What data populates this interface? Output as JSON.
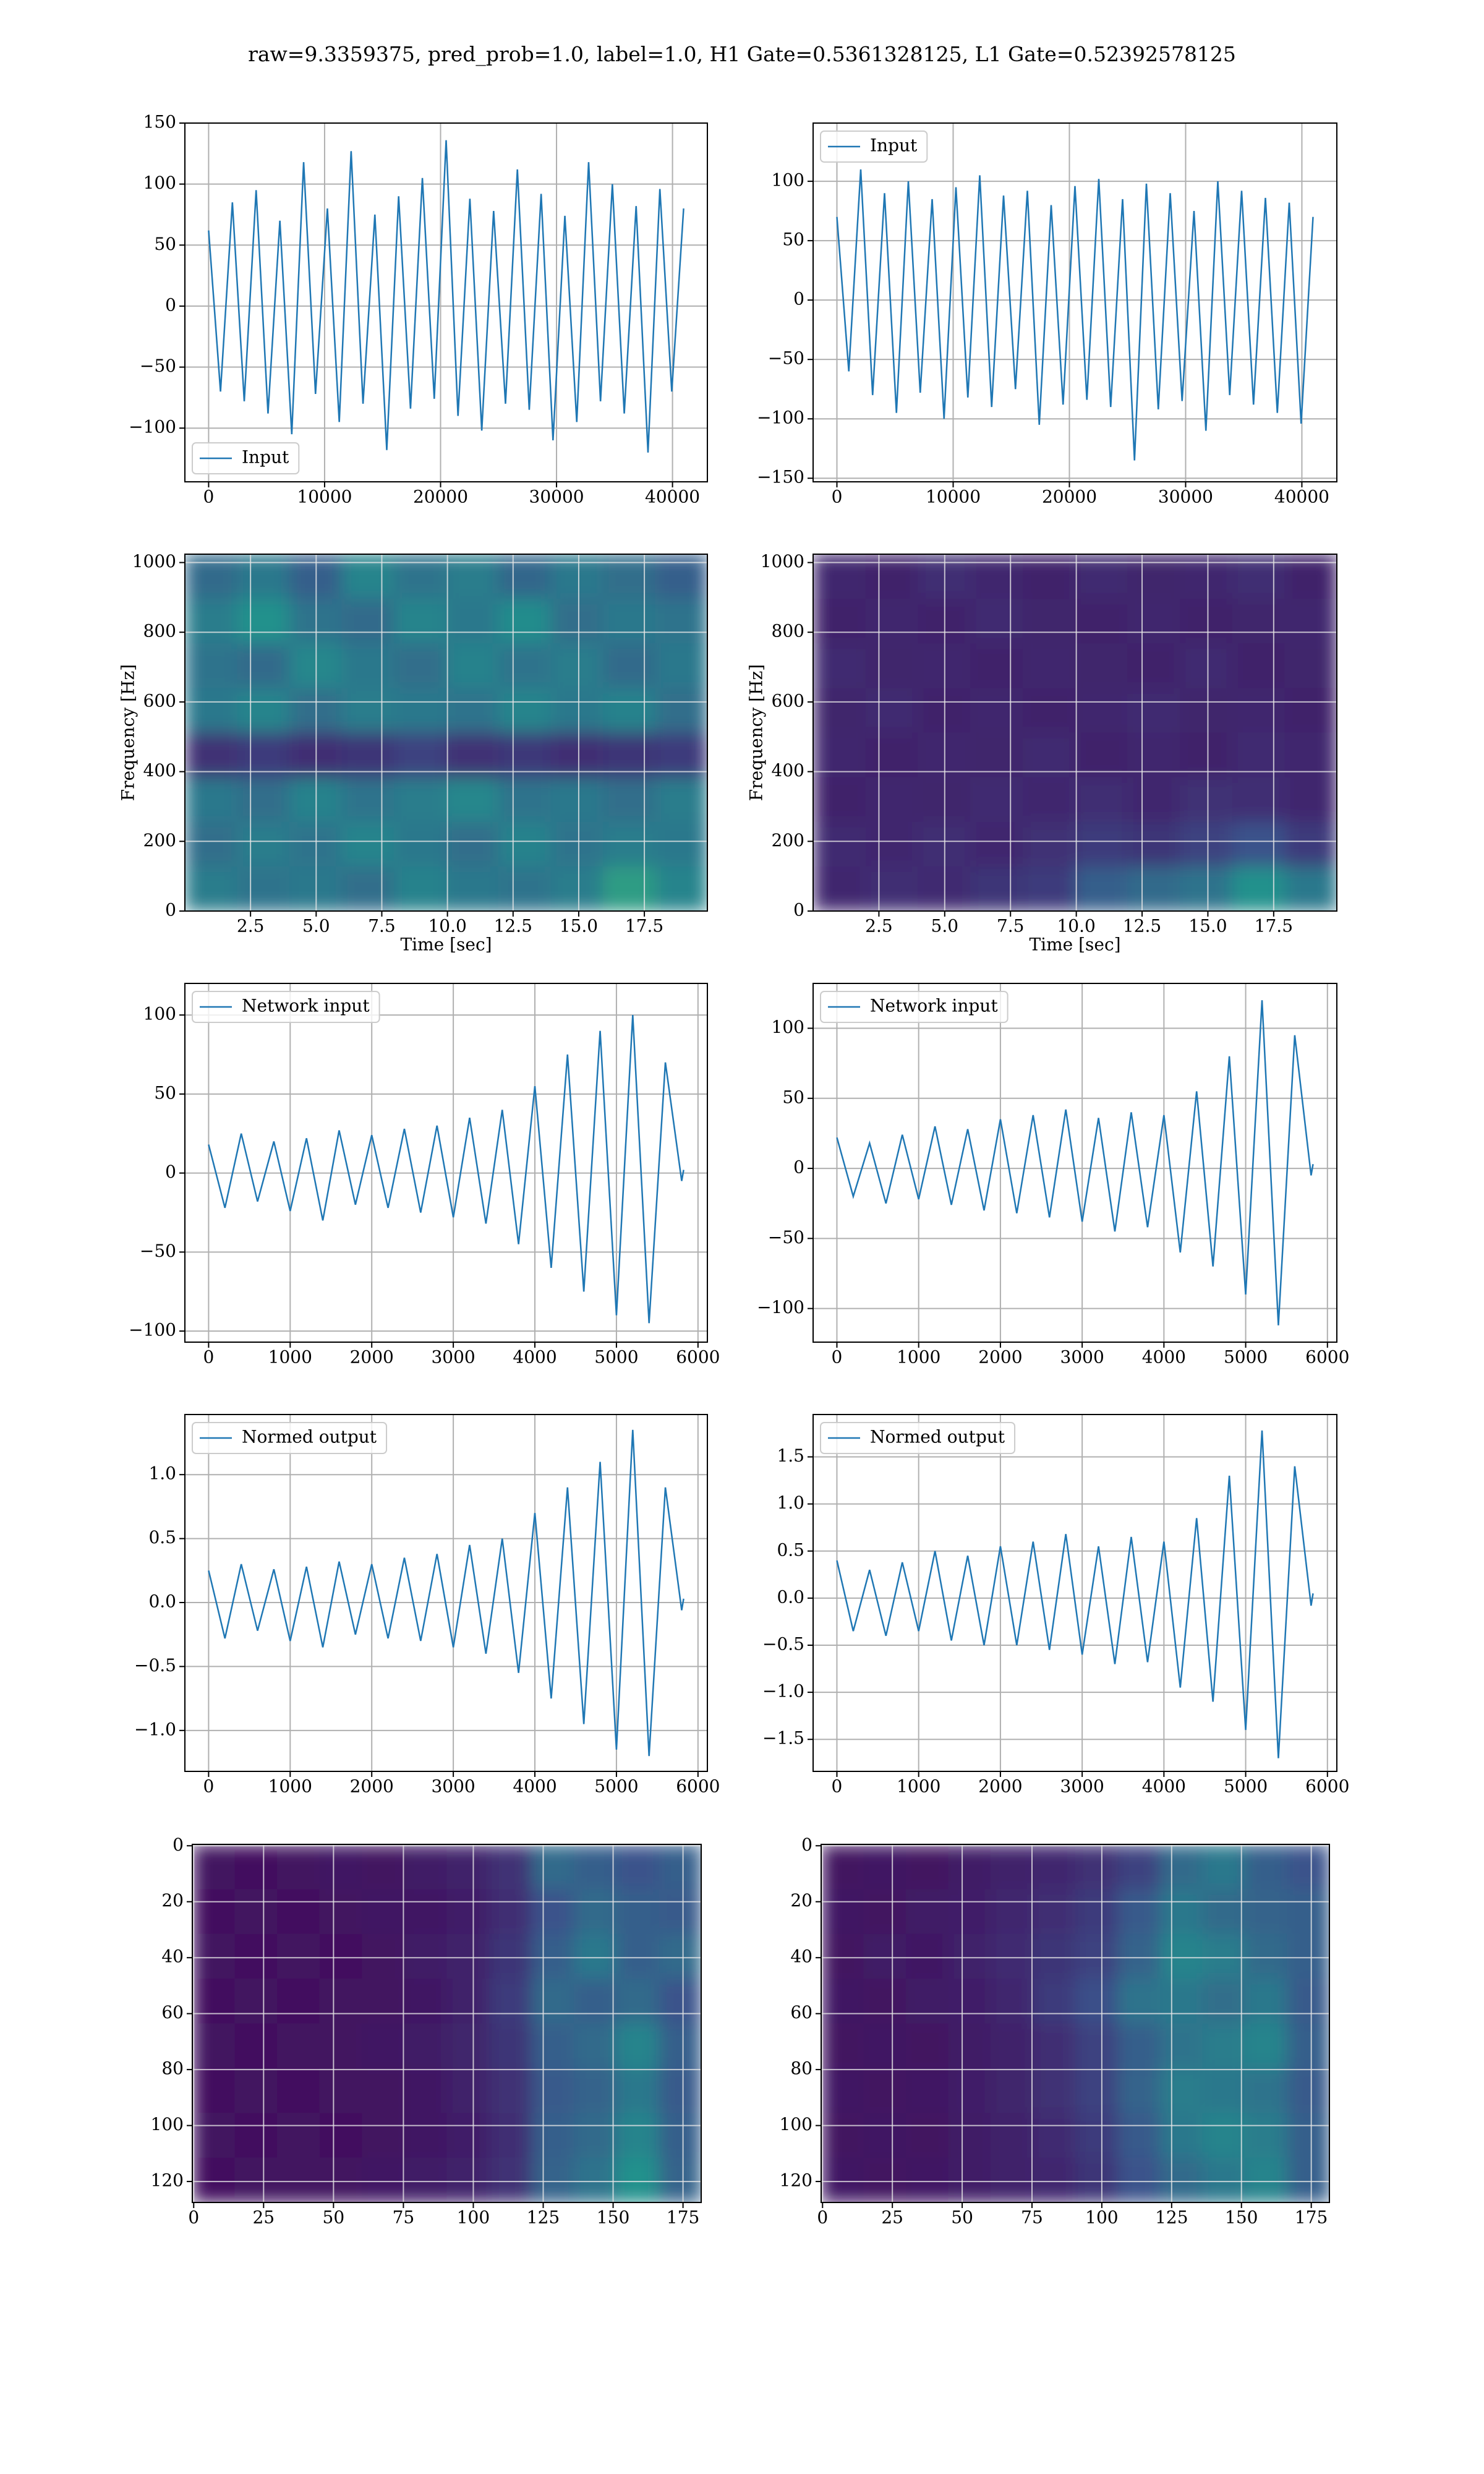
{
  "title": "raw=9.3359375, pred_prob=1.0, label=1.0, H1 Gate=0.5361328125, L1 Gate=0.52392578125",
  "chart_data": [
    {
      "type": "line",
      "legend": "lower left",
      "grid": true,
      "x": [
        0,
        1024,
        2048,
        3072,
        4096,
        5120,
        6144,
        7168,
        8192,
        9216,
        10240,
        11264,
        12288,
        13312,
        14336,
        15360,
        16384,
        17408,
        18432,
        19456,
        20480,
        21504,
        22528,
        23552,
        24576,
        25600,
        26624,
        27648,
        28672,
        29696,
        30720,
        31744,
        32768,
        33792,
        34816,
        35840,
        36864,
        37888,
        38912,
        39936,
        40960
      ],
      "series": [
        {
          "name": "Input",
          "color": "#1f77b4",
          "values": [
            62,
            -70,
            85,
            -78,
            95,
            -88,
            70,
            -105,
            118,
            -72,
            80,
            -95,
            127,
            -80,
            75,
            -118,
            90,
            -84,
            105,
            -76,
            136,
            -90,
            88,
            -102,
            78,
            -80,
            112,
            -85,
            92,
            -110,
            74,
            -95,
            118,
            -78,
            100,
            -88,
            82,
            -120,
            96,
            -70,
            80
          ]
        }
      ],
      "xlim": [
        -2048,
        43008
      ],
      "ylim": [
        -144,
        150
      ],
      "xticks": [
        0,
        10000,
        20000,
        30000,
        40000
      ],
      "yticks": [
        {
          "value": -100,
          "label": "−100"
        },
        {
          "value": -50,
          "label": "−50"
        },
        0,
        50,
        100,
        150
      ]
    },
    {
      "type": "line",
      "legend": "upper left",
      "grid": true,
      "x": [
        0,
        1024,
        2048,
        3072,
        4096,
        5120,
        6144,
        7168,
        8192,
        9216,
        10240,
        11264,
        12288,
        13312,
        14336,
        15360,
        16384,
        17408,
        18432,
        19456,
        20480,
        21504,
        22528,
        23552,
        24576,
        25600,
        26624,
        27648,
        28672,
        29696,
        30720,
        31744,
        32768,
        33792,
        34816,
        35840,
        36864,
        37888,
        38912,
        39936,
        40960
      ],
      "series": [
        {
          "name": "Input",
          "color": "#1f77b4",
          "values": [
            70,
            -60,
            110,
            -80,
            90,
            -95,
            100,
            -78,
            85,
            -100,
            95,
            -82,
            105,
            -90,
            88,
            -75,
            92,
            -105,
            80,
            -88,
            96,
            -84,
            102,
            -90,
            85,
            -135,
            98,
            -92,
            90,
            -85,
            75,
            -110,
            100,
            -80,
            92,
            -88,
            86,
            -95,
            82,
            -104,
            70
          ]
        }
      ],
      "xlim": [
        -2048,
        43008
      ],
      "ylim": [
        -153,
        149
      ],
      "xticks": [
        0,
        10000,
        20000,
        30000,
        40000
      ],
      "yticks": [
        {
          "value": -150,
          "label": "−150"
        },
        {
          "value": -100,
          "label": "−100"
        },
        {
          "value": -50,
          "label": "−50"
        },
        0,
        50,
        100
      ]
    },
    {
      "type": "heatmap",
      "colormap": "viridis",
      "grid": true,
      "xlabel": "Time [sec]",
      "ylabel": "Frequency [Hz]",
      "z": [
        [
          0.35,
          0.4,
          0.3,
          0.45,
          0.38,
          0.42,
          0.33,
          0.4,
          0.36,
          0.3
        ],
        [
          0.42,
          0.5,
          0.38,
          0.35,
          0.45,
          0.4,
          0.48,
          0.36,
          0.4,
          0.38
        ],
        [
          0.38,
          0.35,
          0.46,
          0.4,
          0.36,
          0.44,
          0.38,
          0.42,
          0.35,
          0.4
        ],
        [
          0.4,
          0.45,
          0.36,
          0.42,
          0.4,
          0.38,
          0.45,
          0.4,
          0.44,
          0.36
        ],
        [
          0.15,
          0.18,
          0.14,
          0.16,
          0.2,
          0.15,
          0.17,
          0.14,
          0.16,
          0.18
        ],
        [
          0.4,
          0.36,
          0.44,
          0.38,
          0.42,
          0.46,
          0.38,
          0.4,
          0.36,
          0.42
        ],
        [
          0.36,
          0.42,
          0.38,
          0.45,
          0.4,
          0.36,
          0.44,
          0.38,
          0.42,
          0.4
        ],
        [
          0.42,
          0.38,
          0.4,
          0.36,
          0.44,
          0.4,
          0.38,
          0.42,
          0.55,
          0.45
        ]
      ],
      "xlim": [
        0,
        19.9
      ],
      "ylim": [
        0,
        1024
      ],
      "xticks": [
        2.5,
        {
          "value": 5,
          "label": "5.0"
        },
        7.5,
        {
          "value": 10,
          "label": "10.0"
        },
        12.5,
        {
          "value": 15,
          "label": "15.0"
        },
        17.5
      ],
      "yticks": [
        0,
        200,
        400,
        600,
        800,
        1000
      ]
    },
    {
      "type": "heatmap",
      "colormap": "viridis",
      "grid": true,
      "xlabel": "Time [sec]",
      "ylabel": "Frequency [Hz]",
      "z": [
        [
          0.12,
          0.1,
          0.14,
          0.12,
          0.1,
          0.13,
          0.11,
          0.12,
          0.14,
          0.1
        ],
        [
          0.1,
          0.12,
          0.1,
          0.13,
          0.11,
          0.1,
          0.12,
          0.1,
          0.11,
          0.12
        ],
        [
          0.13,
          0.11,
          0.12,
          0.1,
          0.12,
          0.11,
          0.1,
          0.13,
          0.1,
          0.11
        ],
        [
          0.11,
          0.13,
          0.1,
          0.12,
          0.1,
          0.12,
          0.13,
          0.11,
          0.12,
          0.1
        ],
        [
          0.12,
          0.1,
          0.12,
          0.11,
          0.13,
          0.1,
          0.12,
          0.1,
          0.13,
          0.12
        ],
        [
          0.1,
          0.12,
          0.11,
          0.13,
          0.12,
          0.14,
          0.12,
          0.15,
          0.14,
          0.12
        ],
        [
          0.13,
          0.12,
          0.14,
          0.12,
          0.15,
          0.18,
          0.16,
          0.2,
          0.25,
          0.18
        ],
        [
          0.12,
          0.14,
          0.13,
          0.16,
          0.18,
          0.3,
          0.35,
          0.38,
          0.5,
          0.4
        ]
      ],
      "xlim": [
        0,
        19.9
      ],
      "ylim": [
        0,
        1024
      ],
      "xticks": [
        2.5,
        {
          "value": 5,
          "label": "5.0"
        },
        7.5,
        {
          "value": 10,
          "label": "10.0"
        },
        12.5,
        {
          "value": 15,
          "label": "15.0"
        },
        17.5
      ],
      "yticks": [
        0,
        200,
        400,
        600,
        800,
        1000
      ]
    },
    {
      "type": "line",
      "legend": "upper left",
      "grid": true,
      "x": [
        0,
        200,
        400,
        600,
        800,
        1000,
        1200,
        1400,
        1600,
        1800,
        2000,
        2200,
        2400,
        2600,
        2800,
        3000,
        3200,
        3400,
        3600,
        3800,
        4000,
        4200,
        4400,
        4600,
        4800,
        5000,
        5200,
        5400,
        5600,
        5800,
        5824
      ],
      "series": [
        {
          "name": "Network input",
          "color": "#1f77b4",
          "values": [
            18,
            -22,
            25,
            -18,
            20,
            -24,
            22,
            -30,
            27,
            -20,
            24,
            -22,
            28,
            -25,
            30,
            -28,
            35,
            -32,
            40,
            -45,
            55,
            -60,
            75,
            -75,
            90,
            -90,
            100,
            -95,
            70,
            -5,
            2
          ]
        }
      ],
      "xlim": [
        -291,
        6115
      ],
      "ylim": [
        -107,
        120
      ],
      "xticks": [
        0,
        1000,
        2000,
        3000,
        4000,
        5000,
        6000
      ],
      "yticks": [
        {
          "value": -100,
          "label": "−100"
        },
        {
          "value": -50,
          "label": "−50"
        },
        0,
        50,
        100
      ]
    },
    {
      "type": "line",
      "legend": "upper left",
      "grid": true,
      "x": [
        0,
        200,
        400,
        600,
        800,
        1000,
        1200,
        1400,
        1600,
        1800,
        2000,
        2200,
        2400,
        2600,
        2800,
        3000,
        3200,
        3400,
        3600,
        3800,
        4000,
        4200,
        4400,
        4600,
        4800,
        5000,
        5200,
        5400,
        5600,
        5800,
        5824
      ],
      "series": [
        {
          "name": "Network input",
          "color": "#1f77b4",
          "values": [
            22,
            -20,
            18,
            -25,
            24,
            -22,
            30,
            -26,
            28,
            -30,
            35,
            -32,
            38,
            -35,
            42,
            -38,
            36,
            -45,
            40,
            -42,
            38,
            -60,
            55,
            -70,
            80,
            -90,
            120,
            -112,
            95,
            -5,
            3
          ]
        }
      ],
      "xlim": [
        -291,
        6115
      ],
      "ylim": [
        -124,
        132
      ],
      "xticks": [
        0,
        1000,
        2000,
        3000,
        4000,
        5000,
        6000
      ],
      "yticks": [
        {
          "value": -100,
          "label": "−100"
        },
        {
          "value": -50,
          "label": "−50"
        },
        0,
        50,
        100
      ]
    },
    {
      "type": "line",
      "legend": "upper left",
      "grid": true,
      "x": [
        0,
        200,
        400,
        600,
        800,
        1000,
        1200,
        1400,
        1600,
        1800,
        2000,
        2200,
        2400,
        2600,
        2800,
        3000,
        3200,
        3400,
        3600,
        3800,
        4000,
        4200,
        4400,
        4600,
        4800,
        5000,
        5200,
        5400,
        5600,
        5800,
        5824
      ],
      "series": [
        {
          "name": "Normed output",
          "color": "#1f77b4",
          "values": [
            0.25,
            -0.28,
            0.3,
            -0.22,
            0.26,
            -0.3,
            0.28,
            -0.35,
            0.32,
            -0.25,
            0.3,
            -0.28,
            0.35,
            -0.3,
            0.38,
            -0.35,
            0.45,
            -0.4,
            0.5,
            -0.55,
            0.7,
            -0.75,
            0.9,
            -0.95,
            1.1,
            -1.15,
            1.35,
            -1.2,
            0.9,
            -0.06,
            0.03
          ]
        }
      ],
      "xlim": [
        -291,
        6115
      ],
      "ylim": [
        -1.32,
        1.47
      ],
      "xticks": [
        0,
        1000,
        2000,
        3000,
        4000,
        5000,
        6000
      ],
      "yticks": [
        {
          "value": -1,
          "label": "−1.0"
        },
        {
          "value": -0.5,
          "label": "−0.5"
        },
        {
          "value": 0,
          "label": "0.0"
        },
        0.5,
        {
          "value": 1,
          "label": "1.0"
        }
      ]
    },
    {
      "type": "line",
      "legend": "upper left",
      "grid": true,
      "x": [
        0,
        200,
        400,
        600,
        800,
        1000,
        1200,
        1400,
        1600,
        1800,
        2000,
        2200,
        2400,
        2600,
        2800,
        3000,
        3200,
        3400,
        3600,
        3800,
        4000,
        4200,
        4400,
        4600,
        4800,
        5000,
        5200,
        5400,
        5600,
        5800,
        5824
      ],
      "series": [
        {
          "name": "Normed output",
          "color": "#1f77b4",
          "values": [
            0.4,
            -0.35,
            0.3,
            -0.4,
            0.38,
            -0.35,
            0.5,
            -0.45,
            0.45,
            -0.5,
            0.55,
            -0.5,
            0.6,
            -0.55,
            0.68,
            -0.6,
            0.55,
            -0.7,
            0.65,
            -0.68,
            0.6,
            -0.95,
            0.85,
            -1.1,
            1.3,
            -1.4,
            1.78,
            -1.7,
            1.4,
            -0.08,
            0.05
          ]
        }
      ],
      "xlim": [
        -291,
        6115
      ],
      "ylim": [
        -1.84,
        1.95
      ],
      "xticks": [
        0,
        1000,
        2000,
        3000,
        4000,
        5000,
        6000
      ],
      "yticks": [
        {
          "value": -1.5,
          "label": "−1.5"
        },
        {
          "value": -1,
          "label": "−1.0"
        },
        {
          "value": -0.5,
          "label": "−0.5"
        },
        {
          "value": 0,
          "label": "0.0"
        },
        0.5,
        {
          "value": 1,
          "label": "1.0"
        },
        1.5
      ]
    },
    {
      "type": "heatmap",
      "colormap": "viridis",
      "grid": true,
      "z": [
        [
          0.06,
          0.05,
          0.06,
          0.07,
          0.06,
          0.08,
          0.1,
          0.15,
          0.35,
          0.3,
          0.25,
          0.3
        ],
        [
          0.05,
          0.06,
          0.05,
          0.06,
          0.07,
          0.07,
          0.09,
          0.14,
          0.25,
          0.35,
          0.3,
          0.28
        ],
        [
          0.06,
          0.05,
          0.06,
          0.05,
          0.06,
          0.08,
          0.1,
          0.16,
          0.3,
          0.4,
          0.3,
          0.35
        ],
        [
          0.05,
          0.06,
          0.05,
          0.06,
          0.06,
          0.07,
          0.1,
          0.18,
          0.35,
          0.3,
          0.35,
          0.25
        ],
        [
          0.06,
          0.05,
          0.06,
          0.06,
          0.07,
          0.08,
          0.11,
          0.16,
          0.3,
          0.35,
          0.45,
          0.3
        ],
        [
          0.05,
          0.06,
          0.05,
          0.06,
          0.06,
          0.07,
          0.1,
          0.15,
          0.28,
          0.32,
          0.4,
          0.28
        ],
        [
          0.06,
          0.05,
          0.06,
          0.05,
          0.06,
          0.07,
          0.09,
          0.14,
          0.3,
          0.35,
          0.45,
          0.3
        ],
        [
          0.05,
          0.06,
          0.06,
          0.06,
          0.07,
          0.08,
          0.1,
          0.15,
          0.32,
          0.38,
          0.5,
          0.32
        ]
      ],
      "xlim": [
        -0.5,
        181.5
      ],
      "ylim": [
        127.5,
        -0.5
      ],
      "xticks": [
        0,
        25,
        50,
        75,
        100,
        125,
        150,
        175
      ],
      "yticks": [
        0,
        20,
        40,
        60,
        80,
        100,
        120
      ]
    },
    {
      "type": "heatmap",
      "colormap": "viridis",
      "grid": true,
      "z": [
        [
          0.06,
          0.07,
          0.06,
          0.08,
          0.1,
          0.12,
          0.15,
          0.2,
          0.35,
          0.4,
          0.3,
          0.25
        ],
        [
          0.07,
          0.06,
          0.08,
          0.09,
          0.12,
          0.14,
          0.18,
          0.28,
          0.4,
          0.35,
          0.32,
          0.3
        ],
        [
          0.06,
          0.08,
          0.07,
          0.1,
          0.13,
          0.16,
          0.2,
          0.32,
          0.45,
          0.42,
          0.35,
          0.3
        ],
        [
          0.07,
          0.06,
          0.08,
          0.09,
          0.12,
          0.18,
          0.24,
          0.38,
          0.4,
          0.36,
          0.4,
          0.28
        ],
        [
          0.06,
          0.07,
          0.06,
          0.08,
          0.1,
          0.14,
          0.2,
          0.3,
          0.38,
          0.42,
          0.45,
          0.3
        ],
        [
          0.07,
          0.06,
          0.07,
          0.09,
          0.11,
          0.15,
          0.2,
          0.32,
          0.42,
          0.4,
          0.38,
          0.28
        ],
        [
          0.06,
          0.07,
          0.06,
          0.08,
          0.1,
          0.13,
          0.18,
          0.28,
          0.4,
          0.45,
          0.42,
          0.3
        ],
        [
          0.07,
          0.06,
          0.07,
          0.08,
          0.1,
          0.12,
          0.16,
          0.25,
          0.35,
          0.4,
          0.45,
          0.3
        ]
      ],
      "xlim": [
        -0.5,
        181.5
      ],
      "ylim": [
        127.5,
        -0.5
      ],
      "xticks": [
        0,
        25,
        50,
        75,
        100,
        125,
        150,
        175
      ],
      "yticks": [
        0,
        20,
        40,
        60,
        80,
        100,
        120
      ]
    }
  ]
}
